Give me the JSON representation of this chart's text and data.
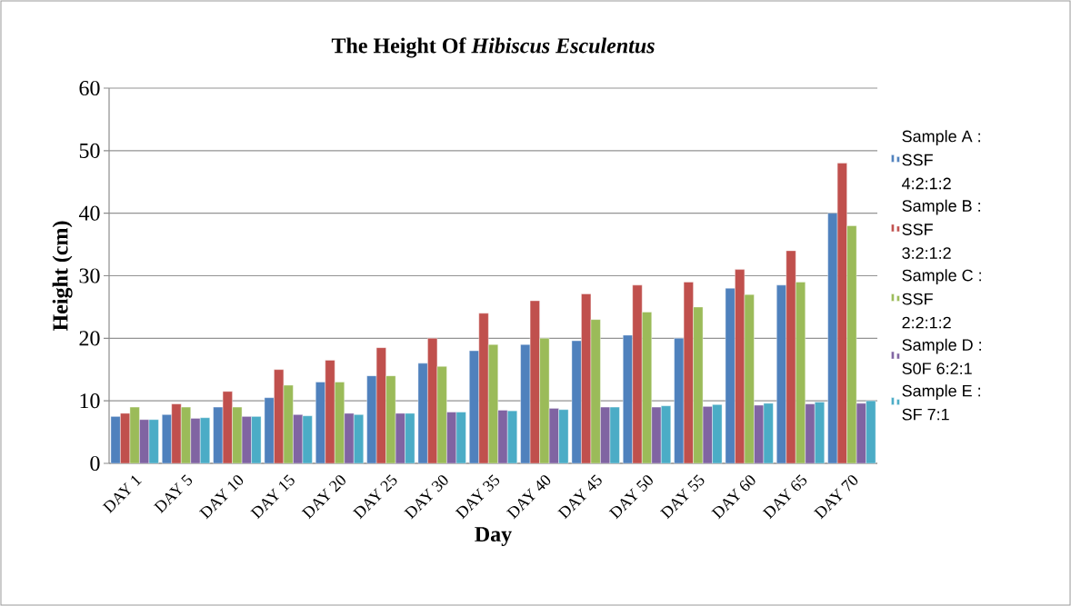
{
  "chart_data": {
    "type": "bar",
    "title": "The Height Of *Hibiscus Esculentus*",
    "xlabel": "Day",
    "ylabel": "Height (cm)",
    "categories": [
      "DAY 1",
      "DAY 5",
      "DAY 10",
      "DAY 15",
      "DAY 20",
      "DAY 25",
      "DAY 30",
      "DAY 35",
      "DAY 40",
      "DAY 45",
      "DAY 50",
      "DAY 55",
      "DAY 60",
      "DAY 65",
      "DAY 70"
    ],
    "series": [
      {
        "name": "Sample A : SSF 4:2:1:2",
        "color": "#4f81bd",
        "values": [
          7.5,
          7.8,
          9,
          10.5,
          13,
          14,
          16,
          18,
          19,
          19.6,
          20.5,
          20,
          28,
          28.5,
          40
        ]
      },
      {
        "name": "Sample B : SSF 3:2:1:2",
        "color": "#c0504d",
        "values": [
          8,
          9.5,
          11.5,
          15,
          16.5,
          18.5,
          20,
          24,
          26,
          27.1,
          28.5,
          29,
          31,
          34,
          48
        ]
      },
      {
        "name": "Sample C : SSF 2:2:1:2",
        "color": "#9bbb59",
        "values": [
          9,
          9,
          9,
          12.5,
          13,
          14,
          15.5,
          19,
          20,
          23,
          24.2,
          25,
          27,
          29,
          38
        ]
      },
      {
        "name": "Sample D : S0F 6:2:1",
        "color": "#8064a2",
        "values": [
          7,
          7.2,
          7.5,
          7.8,
          8,
          8,
          8.2,
          8.5,
          8.8,
          9,
          9,
          9.1,
          9.3,
          9.5,
          9.6
        ]
      },
      {
        "name": "Sample E : SF 7:1",
        "color": "#4bacc6",
        "values": [
          7,
          7.3,
          7.5,
          7.6,
          7.8,
          8,
          8.2,
          8.4,
          8.6,
          9,
          9.2,
          9.4,
          9.6,
          9.8,
          10
        ]
      }
    ],
    "ylim": [
      0,
      60
    ],
    "yticks": [
      0,
      10,
      20,
      30,
      40,
      50,
      60
    ],
    "grid": "y",
    "legend": "right"
  }
}
